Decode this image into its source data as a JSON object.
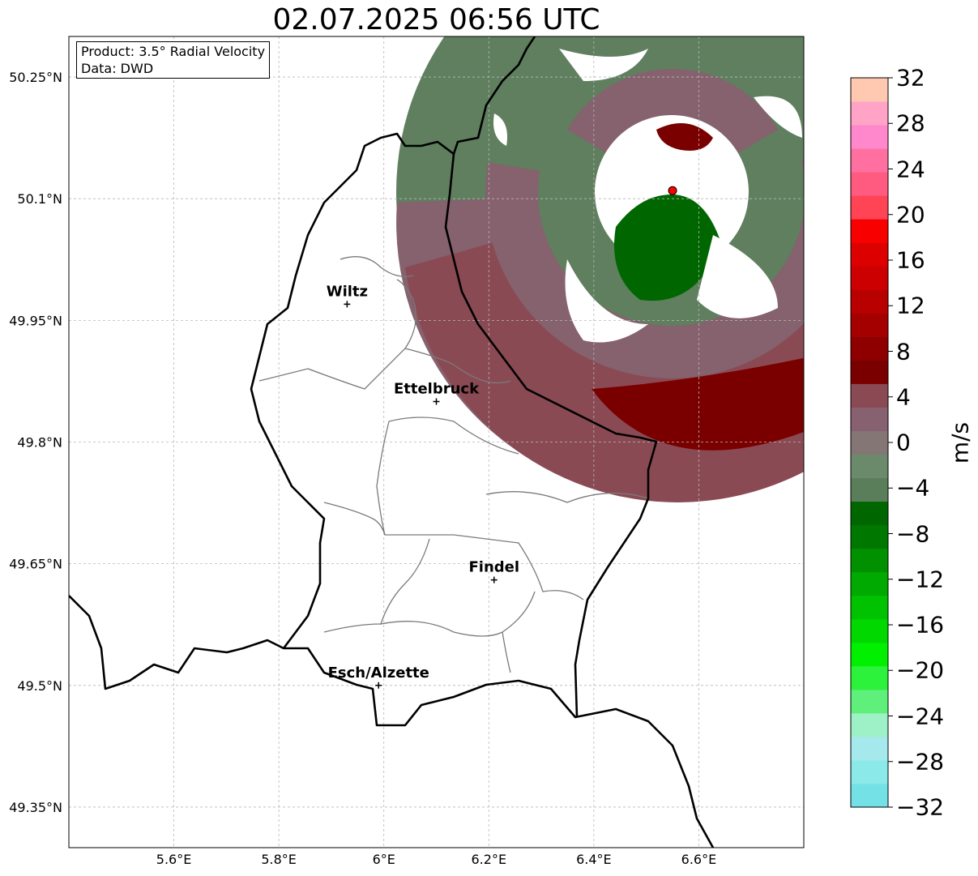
{
  "title": "02.07.2025 06:56 UTC",
  "info_box": {
    "product": "Product: 3.5° Radial Velocity",
    "source": "Data: DWD"
  },
  "axes": {
    "x_ticks": [
      "5.6°E",
      "5.8°E",
      "6°E",
      "6.2°E",
      "6.4°E",
      "6.6°E"
    ],
    "y_ticks": [
      "50.25°N",
      "50.1°N",
      "49.95°N",
      "49.8°N",
      "49.65°N",
      "49.5°N",
      "49.35°N"
    ],
    "x_range": [
      5.4,
      6.8
    ],
    "y_range": [
      49.3,
      50.3
    ]
  },
  "cities": [
    {
      "name": "Wiltz",
      "lon": 5.93,
      "lat": 49.97
    },
    {
      "name": "Ettelbruck",
      "lon": 6.1,
      "lat": 49.85
    },
    {
      "name": "Findel",
      "lon": 6.21,
      "lat": 49.63
    },
    {
      "name": "Esch/Alzette",
      "lon": 5.99,
      "lat": 49.5
    }
  ],
  "radar_site": {
    "lon": 6.55,
    "lat": 50.11,
    "color": "#ff0000"
  },
  "colorbar": {
    "label": "m/s",
    "min": -32,
    "max": 32,
    "tick_labels": [
      "32",
      "28",
      "24",
      "20",
      "16",
      "12",
      "8",
      "4",
      "0",
      "−4",
      "−8",
      "−12",
      "−16",
      "−20",
      "−24",
      "−28",
      "−32"
    ],
    "colors": [
      "#73e1e6",
      "#8ce9ea",
      "#a6e9ec",
      "#9ef0c6",
      "#5ef07a",
      "#2df23c",
      "#00f000",
      "#00d800",
      "#00c200",
      "#00aa00",
      "#009000",
      "#007800",
      "#006600",
      "#5a7d5a",
      "#6b8a6b",
      "#847674",
      "#876170",
      "#8a4a54",
      "#7a0000",
      "#8e0000",
      "#a50000",
      "#b80000",
      "#cc0000",
      "#dc0000",
      "#f80000",
      "#ff4455",
      "#ff5a80",
      "#ff70a0",
      "#ff88cc",
      "#ffa4c6",
      "#ffc8b0"
    ]
  }
}
